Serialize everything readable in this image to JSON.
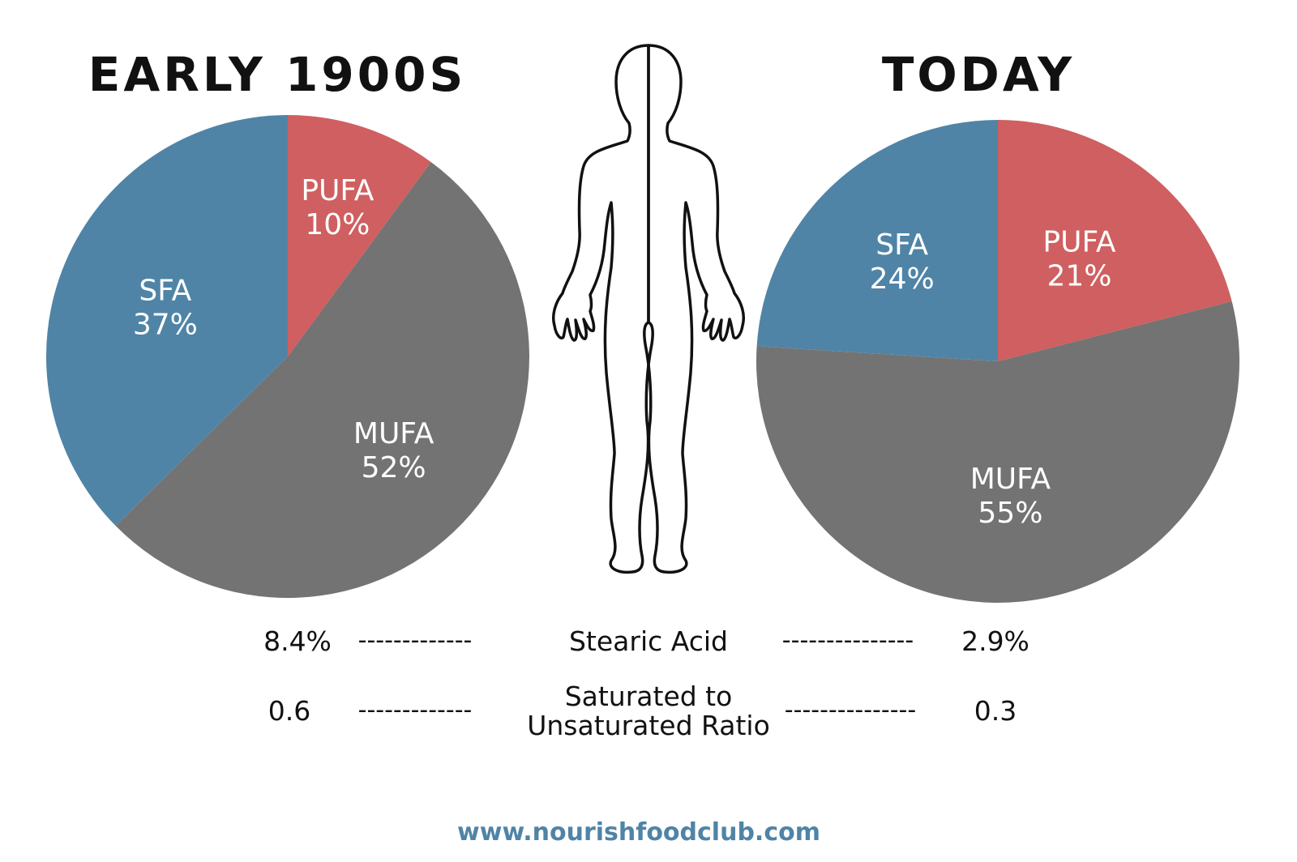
{
  "colors": {
    "pufa": "#cf5f60",
    "mufa": "#737373",
    "sfa": "#4f84a6",
    "text": "#111111",
    "site": "#4f84a6"
  },
  "chart_data": [
    {
      "type": "pie",
      "title": "EARLY 1900S",
      "slices": [
        {
          "label": "PUFA",
          "value": 10,
          "display": "10%",
          "color": "#cf5f60"
        },
        {
          "label": "MUFA",
          "value": 52,
          "display": "52%",
          "color": "#737373"
        },
        {
          "label": "SFA",
          "value": 37,
          "display": "37%",
          "color": "#4f84a6"
        }
      ]
    },
    {
      "type": "pie",
      "title": "TODAY",
      "slices": [
        {
          "label": "PUFA",
          "value": 21,
          "display": "21%",
          "color": "#cf5f60"
        },
        {
          "label": "MUFA",
          "value": 55,
          "display": "55%",
          "color": "#737373"
        },
        {
          "label": "SFA",
          "value": 24,
          "display": "24%",
          "color": "#4f84a6"
        }
      ]
    }
  ],
  "comparison": [
    {
      "left": "8.4%",
      "dashes_left": "-------------",
      "metric_lines": [
        "Stearic Acid"
      ],
      "dashes_right": "---------------",
      "right": "2.9%"
    },
    {
      "left": "0.6",
      "dashes_left": "-------------",
      "metric_lines": [
        "Saturated to",
        "Unsaturated Ratio"
      ],
      "dashes_right": "---------------",
      "right": "0.3"
    }
  ],
  "body_icon": "human-body-outline-icon",
  "footer": {
    "website": "www.nourishfoodclub.com"
  }
}
